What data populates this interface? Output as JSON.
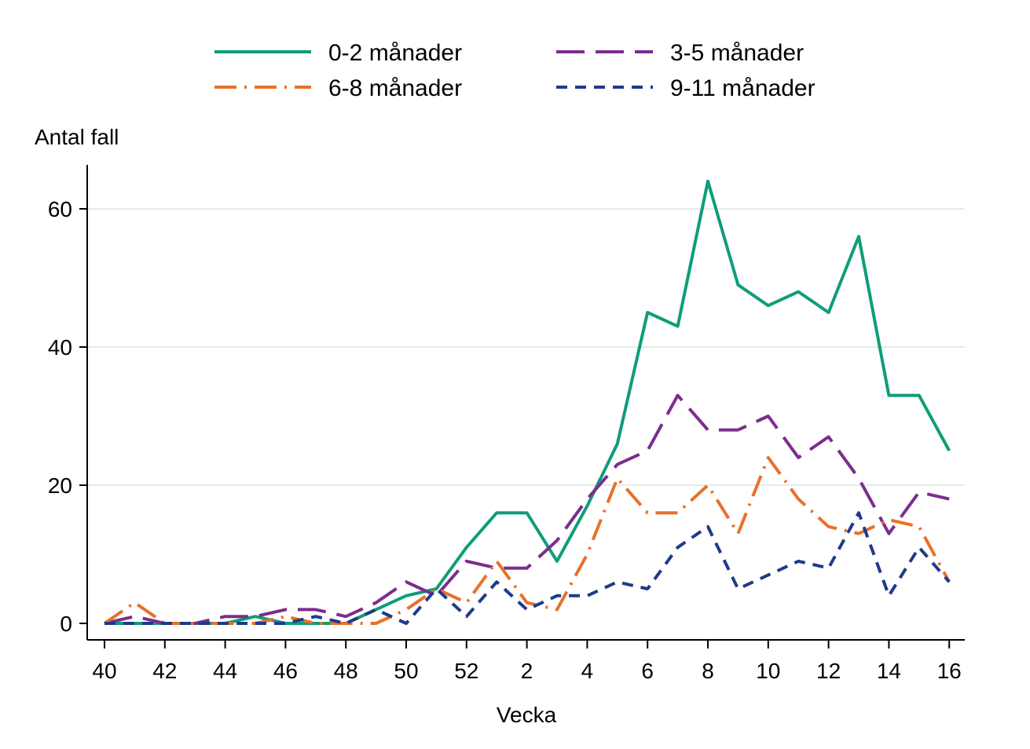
{
  "chart_data": {
    "type": "line",
    "title": "",
    "xlabel": "Vecka",
    "ylabel": "Antal fall",
    "x": [
      "40",
      "41",
      "42",
      "43",
      "44",
      "45",
      "46",
      "47",
      "48",
      "49",
      "50",
      "51",
      "52",
      "1",
      "2",
      "3",
      "4",
      "5",
      "6",
      "7",
      "8",
      "9",
      "10",
      "11",
      "12",
      "13",
      "14",
      "15",
      "16"
    ],
    "x_tick_labels": [
      "40",
      "42",
      "44",
      "46",
      "48",
      "50",
      "52",
      "2",
      "4",
      "6",
      "8",
      "10",
      "12",
      "14",
      "16"
    ],
    "y_ticks": [
      0,
      20,
      40,
      60
    ],
    "ylim": [
      0,
      65
    ],
    "grid": "horizontal",
    "legend": "top",
    "series": [
      {
        "name": "0-2 månader",
        "color": "#0f9d7a",
        "dash": "solid",
        "values": [
          0,
          0,
          0,
          0,
          0,
          1,
          0,
          0,
          0,
          2,
          4,
          5,
          11,
          16,
          16,
          9,
          17,
          26,
          45,
          43,
          64,
          49,
          46,
          48,
          45,
          56,
          33,
          33,
          25
        ]
      },
      {
        "name": "3-5 månader",
        "color": "#7b2d8e",
        "dash": "long-dash",
        "values": [
          0,
          1,
          0,
          0,
          1,
          1,
          2,
          2,
          1,
          3,
          6,
          4,
          9,
          8,
          8,
          12,
          18,
          23,
          25,
          33,
          28,
          28,
          30,
          24,
          27,
          21,
          13,
          19,
          18
        ]
      },
      {
        "name": "6-8 månader",
        "color": "#e8712a",
        "dash": "dash-dot",
        "values": [
          0,
          3,
          0,
          0,
          0,
          0,
          1,
          0,
          0,
          0,
          2,
          5,
          3,
          9,
          3,
          2,
          10,
          21,
          16,
          16,
          20,
          13,
          24,
          18,
          14,
          13,
          15,
          14,
          6
        ]
      },
      {
        "name": "9-11 månader",
        "color": "#1f3a8a",
        "dash": "short-dash",
        "values": [
          0,
          0,
          0,
          0,
          0,
          0,
          0,
          1,
          0,
          2,
          0,
          5,
          1,
          6,
          2,
          4,
          4,
          6,
          5,
          11,
          14,
          5,
          7,
          9,
          8,
          16,
          4,
          11,
          6
        ]
      }
    ]
  }
}
